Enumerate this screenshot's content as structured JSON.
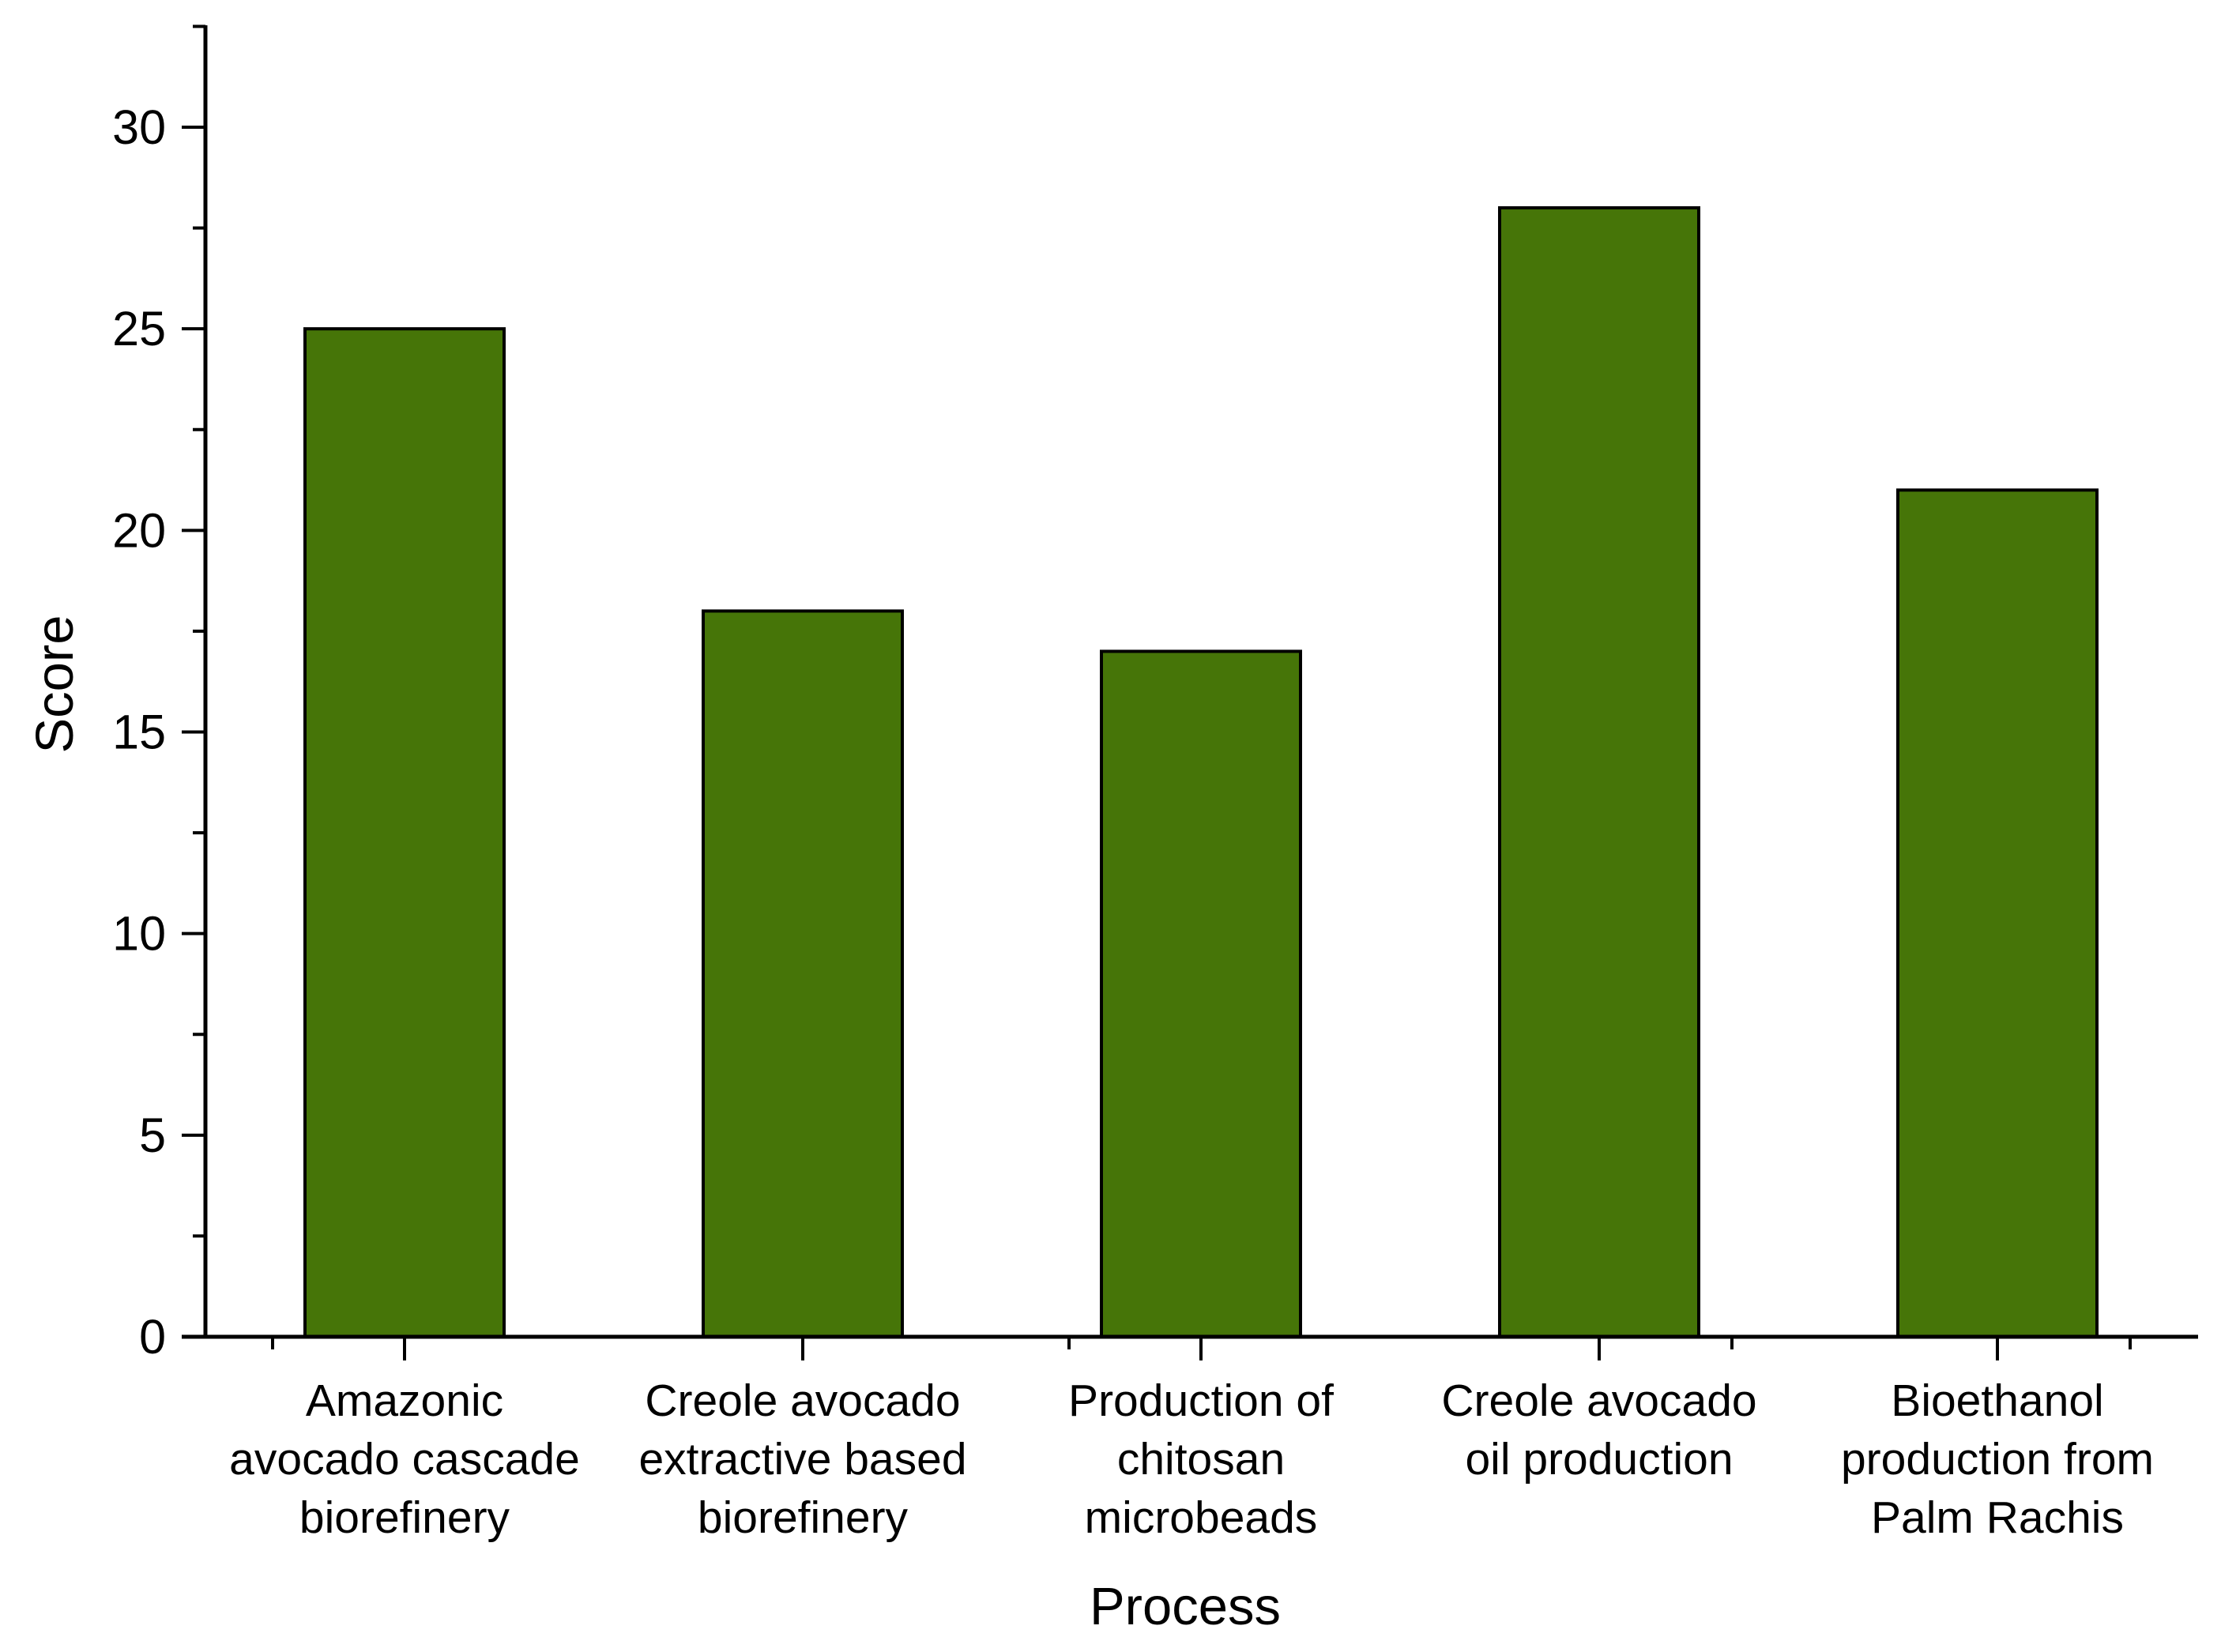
{
  "chart_data": {
    "type": "bar",
    "title": "",
    "xlabel": "Process",
    "ylabel": "Score",
    "categories": [
      [
        "Amazonic",
        "avocado cascade",
        "biorefinery"
      ],
      [
        "Creole avocado",
        "extractive based",
        "biorefinery"
      ],
      [
        "Production of",
        "chitosan",
        "microbeads"
      ],
      [
        "Creole avocado",
        "oil production"
      ],
      [
        "Bioethanol",
        "production from",
        "Palm Rachis"
      ]
    ],
    "values": [
      25,
      18,
      17,
      28,
      21
    ],
    "ylim": [
      0,
      32.5
    ],
    "yticks": [
      0,
      5,
      10,
      15,
      20,
      25,
      30
    ],
    "ytick_labels": [
      "0",
      "5",
      "10",
      "15",
      "20",
      "25",
      "30"
    ],
    "grid": false,
    "legend": "none",
    "colors": {
      "bar_fill": "#467508",
      "bar_stroke": "#000000",
      "axis": "#000000",
      "background": "#ffffff"
    }
  }
}
